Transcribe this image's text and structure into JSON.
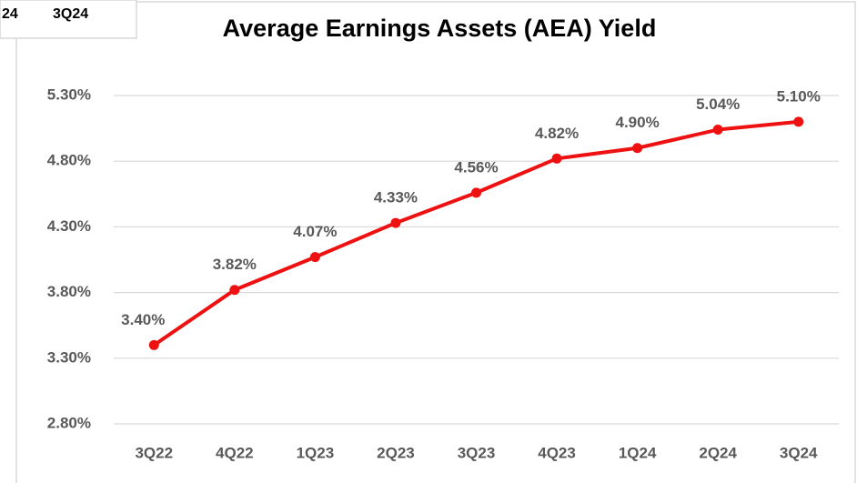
{
  "cropped_header": [
    "24",
    "3Q24"
  ],
  "chart_data": {
    "type": "line",
    "title": "Average Earnings Assets (AEA) Yield",
    "categories": [
      "3Q22",
      "4Q22",
      "1Q23",
      "2Q23",
      "3Q23",
      "4Q23",
      "1Q24",
      "2Q24",
      "3Q24"
    ],
    "values": [
      3.4,
      3.82,
      4.07,
      4.33,
      4.56,
      4.82,
      4.9,
      5.04,
      5.1
    ],
    "value_labels": [
      "3.40%",
      "3.82%",
      "4.07%",
      "4.33%",
      "4.56%",
      "4.82%",
      "4.90%",
      "5.04%",
      "5.10%"
    ],
    "color": "#ee1111",
    "ylim": [
      2.8,
      5.3
    ],
    "yticks": [
      {
        "value": 2.8,
        "label": "2.80%"
      },
      {
        "value": 3.3,
        "label": "3.30%"
      },
      {
        "value": 3.8,
        "label": "3.80%"
      },
      {
        "value": 4.3,
        "label": "4.30%"
      },
      {
        "value": 4.8,
        "label": "4.80%"
      },
      {
        "value": 5.3,
        "label": "5.30%"
      }
    ],
    "grid": true
  }
}
